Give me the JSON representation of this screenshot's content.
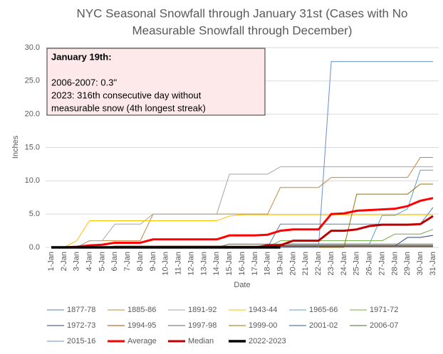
{
  "chart_data": {
    "type": "line",
    "title": [
      "NYC Seasonal Snowfall through January 31st (Cases with No",
      "Measurable Snowfall through December)"
    ],
    "x_label": "Date",
    "y_label": "Inches",
    "annotation": [
      "January 19th:",
      "2006-2007: 0.3\"",
      "2023: 316th consecutive day without",
      "measurable snow (4th longest streak)"
    ],
    "categories": [
      "1-Jan",
      "2-Jan",
      "3-Jan",
      "4-Jan",
      "5-Jan",
      "6-Jan",
      "7-Jan",
      "8-Jan",
      "9-Jan",
      "10-Jan",
      "11-Jan",
      "12-Jan",
      "13-Jan",
      "14-Jan",
      "15-Jan",
      "16-Jan",
      "17-Jan",
      "18-Jan",
      "19-Jan",
      "20-Jan",
      "21-Jan",
      "22-Jan",
      "23-Jan",
      "24-Jan",
      "25-Jan",
      "26-Jan",
      "27-Jan",
      "28-Jan",
      "29-Jan",
      "30-Jan",
      "31-Jan"
    ],
    "ylim": [
      0,
      30
    ],
    "yticks": [
      {
        "value": 0,
        "label": "0.0"
      },
      {
        "value": 5,
        "label": "5.0"
      },
      {
        "value": 10,
        "label": "10.0"
      },
      {
        "value": 15,
        "label": "15.0"
      },
      {
        "value": 20,
        "label": "20.0"
      },
      {
        "value": 25,
        "label": "25.0"
      },
      {
        "value": 30,
        "label": "30.0"
      }
    ],
    "grid": true,
    "legend": "bottom",
    "series": [
      {
        "name": "1877-78",
        "color": "#4f81bd",
        "line_width": 1,
        "values": [
          0,
          0,
          0,
          0,
          0,
          0,
          0,
          0,
          0,
          0,
          0,
          0,
          0,
          0,
          0,
          0,
          0,
          0,
          3.5,
          3.5,
          3.5,
          3.5,
          3.5,
          3.5,
          3.5,
          3.5,
          3.5,
          3.5,
          3.5,
          3.5,
          6.0
        ]
      },
      {
        "name": "1885-86",
        "color": "#c0883f",
        "line_width": 1,
        "values": [
          0,
          0,
          0,
          1.0,
          1.0,
          1.0,
          1.0,
          1.0,
          5.0,
          5.0,
          5.0,
          5.0,
          5.0,
          5.0,
          5.0,
          5.0,
          5.0,
          5.0,
          9.0,
          9.0,
          9.0,
          9.0,
          10.5,
          10.5,
          10.5,
          10.5,
          10.5,
          10.5,
          10.5,
          13.5,
          13.5
        ]
      },
      {
        "name": "1891-92",
        "color": "#a5a5a5",
        "line_width": 1,
        "values": [
          0,
          0,
          0,
          1.0,
          1.0,
          3.5,
          3.5,
          3.5,
          5.0,
          5.0,
          5.0,
          5.0,
          5.0,
          5.0,
          11.0,
          11.0,
          11.0,
          11.0,
          12.1,
          12.1,
          12.1,
          12.1,
          12.1,
          12.1,
          12.1,
          12.1,
          12.1,
          12.1,
          12.1,
          12.1,
          12.1
        ]
      },
      {
        "name": "1943-44",
        "color": "#ffc000",
        "line_width": 1,
        "values": [
          0,
          0,
          1.0,
          4.0,
          4.0,
          4.0,
          4.0,
          4.0,
          4.0,
          4.0,
          4.0,
          4.0,
          4.0,
          4.0,
          4.7,
          4.9,
          4.9,
          4.9,
          4.9,
          4.9,
          4.9,
          4.9,
          4.9,
          4.9,
          4.9,
          4.9,
          4.9,
          4.9,
          4.9,
          4.9,
          4.9
        ]
      },
      {
        "name": "1965-66",
        "color": "#5b9bd5",
        "line_width": 1,
        "values": [
          0,
          0,
          0,
          0,
          0,
          0,
          0,
          0,
          0,
          0,
          0,
          0,
          0,
          0,
          0,
          0,
          0,
          0,
          0.5,
          0.5,
          0.5,
          0.5,
          0.5,
          0.5,
          0.5,
          0.5,
          4.8,
          4.8,
          5.8,
          11.6,
          11.6
        ]
      },
      {
        "name": "1971-72",
        "color": "#70ad47",
        "line_width": 1,
        "values": [
          0,
          0,
          0,
          0,
          0,
          0,
          0,
          0,
          0,
          0,
          0,
          0,
          0,
          0,
          0,
          0,
          0,
          0,
          1.0,
          1.0,
          1.0,
          1.0,
          1.0,
          1.0,
          1.0,
          1.0,
          1.0,
          2.0,
          2.0,
          2.0,
          2.7
        ]
      },
      {
        "name": "1972-73",
        "color": "#264478",
        "line_width": 1,
        "values": [
          0,
          0,
          0,
          0,
          0,
          0,
          0,
          0,
          0,
          0,
          0,
          0,
          0,
          0,
          0,
          0,
          0,
          0,
          0.2,
          0.2,
          0.2,
          0.2,
          0.2,
          0.2,
          0.2,
          0.2,
          0.2,
          0.2,
          1.5,
          1.5,
          1.8
        ]
      },
      {
        "name": "1994-95",
        "color": "#9e480e",
        "line_width": 1,
        "values": [
          0,
          0,
          0,
          0,
          0,
          0.2,
          0.2,
          0.2,
          0.2,
          0.2,
          0.2,
          0.2,
          0.2,
          0.2,
          0.2,
          0.2,
          0.2,
          0.2,
          0.2,
          0.2,
          0.2,
          0.2,
          0.2,
          0.2,
          0.2,
          0.2,
          0.2,
          0.2,
          0.2,
          0.2,
          0.2
        ]
      },
      {
        "name": "1997-98",
        "color": "#636363",
        "line_width": 1,
        "values": [
          0,
          0,
          0,
          0,
          0,
          0,
          0,
          0,
          0,
          0,
          0,
          0,
          0,
          0,
          0.5,
          0.5,
          0.5,
          0.5,
          0.5,
          0.5,
          0.5,
          0.5,
          0.5,
          0.5,
          0.5,
          0.5,
          0.5,
          0.5,
          0.5,
          0.5,
          0.5
        ]
      },
      {
        "name": "1999-00",
        "color": "#997300",
        "line_width": 1,
        "values": [
          0,
          0,
          0,
          0,
          0,
          0,
          0,
          0,
          0,
          0,
          0,
          0,
          0,
          0,
          0,
          0,
          0,
          0,
          0,
          0,
          0,
          0,
          0,
          0,
          8.0,
          8.0,
          8.0,
          8.0,
          8.0,
          9.5,
          9.5
        ]
      },
      {
        "name": "2001-02",
        "color": "#255e91",
        "line_width": 1,
        "values": [
          0,
          0,
          0,
          0,
          0,
          0,
          0,
          0,
          0,
          0,
          0.1,
          0.1,
          0.1,
          0.1,
          0.1,
          0.1,
          0.1,
          0.1,
          0.1,
          0.1,
          0.1,
          0.1,
          0.1,
          0.1,
          0.1,
          0.1,
          0.1,
          0.1,
          0.1,
          0.1,
          0.1
        ]
      },
      {
        "name": "2006-07",
        "color": "#43682b",
        "line_width": 1,
        "values": [
          0,
          0,
          0,
          0,
          0,
          0,
          0,
          0,
          0,
          0,
          0,
          0,
          0,
          0,
          0,
          0,
          0,
          0,
          0.3,
          0.3,
          0.3,
          0.3,
          0.3,
          0.3,
          0.3,
          0.3,
          0.3,
          0.3,
          0.3,
          0.3,
          0.3
        ]
      },
      {
        "name": "2015-16",
        "color": "#698ed0",
        "line_width": 1,
        "values": [
          0,
          0,
          0,
          0,
          0,
          0,
          0,
          0,
          0,
          0,
          0,
          0,
          0,
          0,
          0,
          0,
          0,
          0,
          0,
          0,
          0,
          0,
          27.9,
          27.9,
          27.9,
          27.9,
          27.9,
          27.9,
          27.9,
          27.9,
          27.9
        ]
      },
      {
        "name": "Average",
        "color": "#ff0000",
        "line_width": 3,
        "values": [
          0,
          0,
          0.1,
          0.3,
          0.4,
          0.7,
          0.7,
          0.7,
          1.2,
          1.2,
          1.2,
          1.2,
          1.2,
          1.2,
          1.8,
          1.8,
          1.8,
          1.9,
          2.5,
          2.7,
          2.7,
          2.7,
          5.0,
          5.1,
          5.5,
          5.6,
          5.7,
          5.8,
          6.2,
          7.0,
          7.4
        ]
      },
      {
        "name": "Median",
        "color": "#c00000",
        "line_width": 3,
        "values": [
          0,
          0,
          0,
          0,
          0,
          0,
          0,
          0,
          0,
          0,
          0,
          0,
          0,
          0,
          0,
          0,
          0,
          0.3,
          0.3,
          1.0,
          1.0,
          1.0,
          2.5,
          2.5,
          2.7,
          3.2,
          3.4,
          3.4,
          3.4,
          3.5,
          4.7
        ]
      },
      {
        "name": "2022-2023",
        "color": "#000000",
        "line_width": 3.5,
        "values": [
          0,
          0,
          0,
          0,
          0,
          0,
          0,
          0,
          0,
          0,
          0,
          0,
          0,
          0,
          0,
          0,
          0,
          0,
          0,
          null,
          null,
          null,
          null,
          null,
          null,
          null,
          null,
          null,
          null,
          null,
          null
        ]
      }
    ]
  }
}
